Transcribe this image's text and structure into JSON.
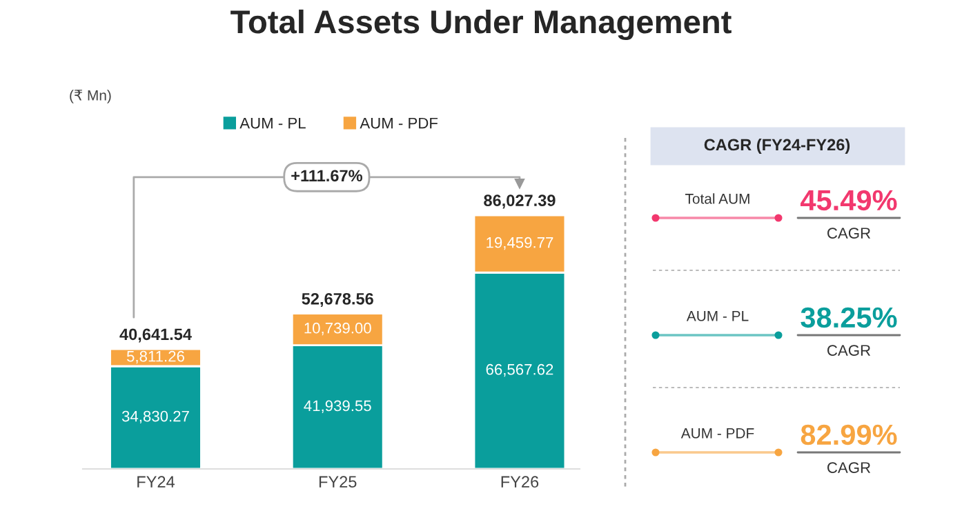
{
  "chart_data": [
    {
      "type": "bar",
      "title": "Total Assets Under Management",
      "stacked": true,
      "legend": "top",
      "grid": false,
      "tick_labels": "x",
      "categories": [
        "FY24",
        "FY25",
        "FY26"
      ],
      "series": [
        {
          "name": "AUM - PL",
          "color": "#0a9e9c",
          "values": [
            34830.27,
            41939.55,
            66567.62
          ],
          "value_labels": [
            "34,830.27",
            "41,939.55",
            "66,567.62"
          ]
        },
        {
          "name": "AUM - PDF",
          "color": "#f7a541",
          "values": [
            5811.26,
            10739.0,
            19459.77
          ],
          "value_labels": [
            "5,811.26",
            "10,739.00",
            "19,459.77"
          ]
        }
      ],
      "totals": [
        "40,641.54",
        "52,678.56",
        "86,027.39"
      ],
      "annotations": [
        "(₹ Mn)",
        "+111.67%"
      ]
    },
    {
      "type": "other",
      "title": "CAGR (FY24-FY26)",
      "categories": [
        "Total AUM",
        "AUM - PL",
        "AUM - PDF"
      ],
      "value_labels": [
        "45.49%",
        "38.25%",
        "82.99%"
      ],
      "colors": [
        "#f2386e",
        "#0a9e9c",
        "#f7a541"
      ],
      "annotations": [
        "CAGR",
        "CAGR",
        "CAGR"
      ]
    }
  ]
}
